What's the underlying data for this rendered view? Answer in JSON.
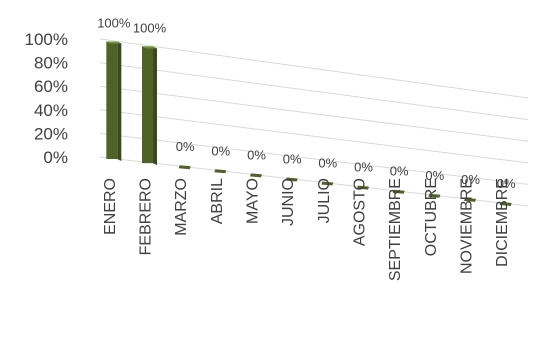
{
  "chart_data": {
    "type": "bar",
    "title": "",
    "xlabel": "",
    "ylabel": "",
    "categories": [
      "ENERO",
      "FEBRERO",
      "MARZO",
      "ABRIL",
      "MAYO",
      "JUNIO",
      "JULIO",
      "AGOSTO",
      "SEPTIEMBRE",
      "OCTUBRE",
      "NOVIEMBRE",
      "DICIEMBRE"
    ],
    "values": [
      100,
      100,
      0,
      0,
      0,
      0,
      0,
      0,
      0,
      0,
      0,
      0
    ],
    "data_labels": [
      "100%",
      "100%",
      "0%",
      "0%",
      "0%",
      "0%",
      "0%",
      "0%",
      "0%",
      "0%",
      "0%",
      "0%"
    ],
    "y_ticks": [
      "100%",
      "80%",
      "60%",
      "40%",
      "20%",
      "0%"
    ],
    "ylim": [
      0,
      100
    ],
    "grid": true,
    "legend": "none",
    "style": "3d-perspective",
    "colors": {
      "bar_front": "#4f6228",
      "bar_side": "#3a4a1c",
      "bar_top": "#76923c",
      "grid": "#d9d9d9"
    }
  }
}
